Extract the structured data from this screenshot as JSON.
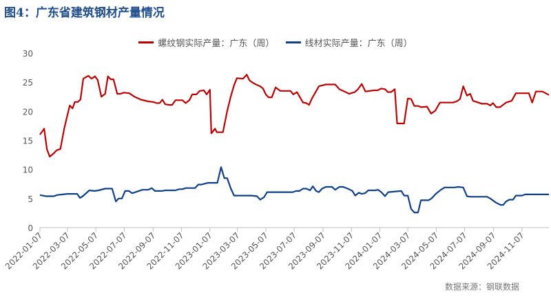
{
  "title": "图4：广东省建筑钢材产量情况",
  "source": "数据来源：钢联数据",
  "chart_data": {
    "type": "line",
    "title": "图4：广东省建筑钢材产量情况",
    "xlabel": "",
    "ylabel": "",
    "ylim": [
      0,
      30
    ],
    "yticks": [
      "0",
      "5",
      "10",
      "15",
      "20",
      "25",
      "30"
    ],
    "xlim": [
      "2022-01-07",
      "2025-01-04"
    ],
    "xticks": [
      "2022-01-07",
      "2022-03-07",
      "2022-05-07",
      "2022-07-07",
      "2022-09-07",
      "2022-11-07",
      "2023-01-07",
      "2023-03-07",
      "2023-05-07",
      "2023-07-07",
      "2023-09-07",
      "2023-11-07",
      "2024-01-07",
      "2024-03-07",
      "2024-05-07",
      "2024-07-07",
      "2024-09-07",
      "2024-11-07"
    ],
    "grid": false,
    "legend": "top",
    "series": [
      {
        "name": "螺纹钢实际产量：广东（周）",
        "color": "#c00000",
        "points": [
          [
            "2022-01-07",
            16
          ],
          [
            "2022-01-16",
            17
          ],
          [
            "2022-01-22",
            13.5
          ],
          [
            "2022-01-28",
            12.2
          ],
          [
            "2022-02-06",
            12.8
          ],
          [
            "2022-02-12",
            13.3
          ],
          [
            "2022-02-20",
            13.5
          ],
          [
            "2022-02-28",
            17
          ],
          [
            "2022-03-06",
            19
          ],
          [
            "2022-03-12",
            21
          ],
          [
            "2022-03-18",
            20.5
          ],
          [
            "2022-03-23",
            21.6
          ],
          [
            "2022-03-29",
            21.6
          ],
          [
            "2022-04-04",
            22
          ],
          [
            "2022-04-10",
            25.6
          ],
          [
            "2022-04-21",
            26.1
          ],
          [
            "2022-04-28",
            25.6
          ],
          [
            "2022-05-05",
            26
          ],
          [
            "2022-05-11",
            25.4
          ],
          [
            "2022-05-19",
            22.5
          ],
          [
            "2022-05-27",
            23
          ],
          [
            "2022-06-02",
            26
          ],
          [
            "2022-06-08",
            25.5
          ],
          [
            "2022-06-14",
            25.5
          ],
          [
            "2022-06-22",
            23
          ],
          [
            "2022-06-29",
            23
          ],
          [
            "2022-07-06",
            23.2
          ],
          [
            "2022-07-18",
            23.1
          ],
          [
            "2022-07-29",
            22.5
          ],
          [
            "2022-08-12",
            22
          ],
          [
            "2022-08-27",
            21.7
          ],
          [
            "2022-09-07",
            21.6
          ],
          [
            "2022-09-15",
            21.4
          ],
          [
            "2022-09-21",
            21.4
          ],
          [
            "2022-09-27",
            22
          ],
          [
            "2022-10-03",
            21.2
          ],
          [
            "2022-10-11",
            21.1
          ],
          [
            "2022-10-18",
            21.1
          ],
          [
            "2022-10-25",
            21.9
          ],
          [
            "2022-11-09",
            21.9
          ],
          [
            "2022-11-16",
            21.4
          ],
          [
            "2022-11-24",
            21.9
          ],
          [
            "2022-11-30",
            22.9
          ],
          [
            "2022-12-09",
            22.9
          ],
          [
            "2022-12-16",
            23.5
          ],
          [
            "2022-12-25",
            23.6
          ],
          [
            "2022-12-31",
            22.9
          ],
          [
            "2023-01-07",
            23.7
          ],
          [
            "2023-01-10",
            16.2
          ],
          [
            "2023-01-18",
            17
          ],
          [
            "2023-01-22",
            16.4
          ],
          [
            "2023-02-04",
            16.4
          ],
          [
            "2023-02-13",
            20
          ],
          [
            "2023-02-21",
            22.6
          ],
          [
            "2023-02-28",
            24.5
          ],
          [
            "2023-03-06",
            25.7
          ],
          [
            "2023-03-19",
            25.6
          ],
          [
            "2023-03-27",
            26.3
          ],
          [
            "2023-04-02",
            25.3
          ],
          [
            "2023-04-09",
            24.9
          ],
          [
            "2023-04-16",
            24.6
          ],
          [
            "2023-04-25",
            24.3
          ],
          [
            "2023-05-01",
            23.9
          ],
          [
            "2023-05-07",
            22.9
          ],
          [
            "2023-05-13",
            22.4
          ],
          [
            "2023-05-20",
            22.4
          ],
          [
            "2023-05-28",
            24.1
          ],
          [
            "2023-06-07",
            23.5
          ],
          [
            "2023-06-29",
            23.5
          ],
          [
            "2023-07-05",
            22.9
          ],
          [
            "2023-07-13",
            23.3
          ],
          [
            "2023-07-18",
            22.6
          ],
          [
            "2023-07-26",
            21.5
          ],
          [
            "2023-08-02",
            21.4
          ],
          [
            "2023-08-08",
            21.1
          ],
          [
            "2023-08-14",
            22.2
          ],
          [
            "2023-08-29",
            24.3
          ],
          [
            "2023-09-13",
            24.6
          ],
          [
            "2023-10-03",
            24.6
          ],
          [
            "2023-10-12",
            23.8
          ],
          [
            "2023-10-23",
            23.4
          ],
          [
            "2023-11-02",
            23
          ],
          [
            "2023-11-14",
            23.3
          ],
          [
            "2023-11-21",
            23.8
          ],
          [
            "2023-11-29",
            24.7
          ],
          [
            "2023-12-07",
            23.4
          ],
          [
            "2023-12-25",
            23.6
          ],
          [
            "2024-01-02",
            23.6
          ],
          [
            "2024-01-10",
            23.9
          ],
          [
            "2024-01-18",
            23.8
          ],
          [
            "2024-01-24",
            23.3
          ],
          [
            "2024-01-31",
            23.3
          ],
          [
            "2024-02-08",
            23.8
          ],
          [
            "2024-02-13",
            17.9
          ],
          [
            "2024-02-28",
            17.9
          ],
          [
            "2024-03-07",
            22.2
          ],
          [
            "2024-03-14",
            22.1
          ],
          [
            "2024-03-21",
            20.9
          ],
          [
            "2024-03-29",
            20.9
          ],
          [
            "2024-04-05",
            20.7
          ],
          [
            "2024-04-17",
            20.8
          ],
          [
            "2024-04-26",
            19.6
          ],
          [
            "2024-05-05",
            20.1
          ],
          [
            "2024-05-15",
            21.5
          ],
          [
            "2024-06-12",
            21.5
          ],
          [
            "2024-06-20",
            21.7
          ],
          [
            "2024-06-27",
            22.1
          ],
          [
            "2024-07-04",
            24.3
          ],
          [
            "2024-07-12",
            22.7
          ],
          [
            "2024-07-19",
            23
          ],
          [
            "2024-07-25",
            21.8
          ],
          [
            "2024-08-13",
            21.3
          ],
          [
            "2024-08-24",
            21.3
          ],
          [
            "2024-08-31",
            21
          ],
          [
            "2024-09-06",
            21.4
          ],
          [
            "2024-09-13",
            20.7
          ],
          [
            "2024-09-21",
            20.7
          ],
          [
            "2024-10-04",
            21.5
          ],
          [
            "2024-10-16",
            21.8
          ],
          [
            "2024-10-25",
            23.1
          ],
          [
            "2024-11-22",
            23.1
          ],
          [
            "2024-11-29",
            21.5
          ],
          [
            "2024-12-07",
            23.4
          ],
          [
            "2024-12-21",
            23.4
          ],
          [
            "2025-01-04",
            22.8
          ]
        ]
      },
      {
        "name": "线材实际产量：广东（周）",
        "color": "#0d3f8a",
        "points": [
          [
            "2022-01-07",
            5.6
          ],
          [
            "2022-01-20",
            5.4
          ],
          [
            "2022-02-06",
            5.4
          ],
          [
            "2022-02-13",
            5.6
          ],
          [
            "2022-03-06",
            5.8
          ],
          [
            "2022-03-28",
            5.8
          ],
          [
            "2022-04-03",
            5.1
          ],
          [
            "2022-04-09",
            5.4
          ],
          [
            "2022-04-23",
            6.4
          ],
          [
            "2022-05-04",
            6.3
          ],
          [
            "2022-05-13",
            6.4
          ],
          [
            "2022-05-27",
            6.7
          ],
          [
            "2022-06-11",
            6.7
          ],
          [
            "2022-06-19",
            4.5
          ],
          [
            "2022-06-25",
            5
          ],
          [
            "2022-07-02",
            5
          ],
          [
            "2022-07-09",
            6.3
          ],
          [
            "2022-07-17",
            6.3
          ],
          [
            "2022-07-24",
            5.9
          ],
          [
            "2022-08-15",
            6.5
          ],
          [
            "2022-08-27",
            6.5
          ],
          [
            "2022-09-04",
            6.8
          ],
          [
            "2022-09-11",
            6.3
          ],
          [
            "2022-09-26",
            6.3
          ],
          [
            "2022-10-03",
            6.4
          ],
          [
            "2022-10-25",
            6.4
          ],
          [
            "2022-11-02",
            6.6
          ],
          [
            "2022-11-09",
            6.6
          ],
          [
            "2022-11-16",
            6.8
          ],
          [
            "2022-12-06",
            6.8
          ],
          [
            "2022-12-13",
            7.4
          ],
          [
            "2022-12-20",
            7.4
          ],
          [
            "2023-01-03",
            7.7
          ],
          [
            "2023-01-23",
            7.7
          ],
          [
            "2023-01-31",
            10.4
          ],
          [
            "2023-02-07",
            8.5
          ],
          [
            "2023-02-13",
            8.5
          ],
          [
            "2023-02-21",
            6.7
          ],
          [
            "2023-02-28",
            5.5
          ],
          [
            "2023-04-06",
            5.5
          ],
          [
            "2023-04-18",
            5.4
          ],
          [
            "2023-04-25",
            4.8
          ],
          [
            "2023-05-03",
            5.2
          ],
          [
            "2023-05-10",
            6.1
          ],
          [
            "2023-05-28",
            6.1
          ],
          [
            "2023-07-04",
            6.1
          ],
          [
            "2023-07-11",
            6.3
          ],
          [
            "2023-07-18",
            6.3
          ],
          [
            "2023-07-26",
            6.7
          ],
          [
            "2023-08-02",
            6.7
          ],
          [
            "2023-08-10",
            6.4
          ],
          [
            "2023-08-16",
            7.1
          ],
          [
            "2023-08-23",
            6.3
          ],
          [
            "2023-08-29",
            6.1
          ],
          [
            "2023-09-05",
            6.7
          ],
          [
            "2023-09-13",
            7
          ],
          [
            "2023-09-26",
            7
          ],
          [
            "2023-10-03",
            6.5
          ],
          [
            "2023-10-12",
            7
          ],
          [
            "2023-10-20",
            7
          ],
          [
            "2023-10-30",
            6.7
          ],
          [
            "2023-11-09",
            6.3
          ],
          [
            "2023-11-15",
            5.5
          ],
          [
            "2023-11-23",
            6
          ],
          [
            "2023-11-29",
            5.8
          ],
          [
            "2023-12-06",
            5.9
          ],
          [
            "2023-12-13",
            6.4
          ],
          [
            "2023-12-28",
            6.4
          ],
          [
            "2024-01-03",
            6.5
          ],
          [
            "2024-01-10",
            6.1
          ],
          [
            "2024-01-18",
            5.4
          ],
          [
            "2024-01-25",
            6.1
          ],
          [
            "2024-02-22",
            6.3
          ],
          [
            "2024-02-28",
            5.5
          ],
          [
            "2024-03-07",
            5.5
          ],
          [
            "2024-03-14",
            3.2
          ],
          [
            "2024-03-21",
            2.6
          ],
          [
            "2024-03-29",
            2.6
          ],
          [
            "2024-04-04",
            4.7
          ],
          [
            "2024-04-20",
            4.7
          ],
          [
            "2024-04-27",
            5
          ],
          [
            "2024-05-06",
            5.8
          ],
          [
            "2024-05-17",
            6.5
          ],
          [
            "2024-05-25",
            6.9
          ],
          [
            "2024-06-15",
            6.9
          ],
          [
            "2024-06-23",
            7
          ],
          [
            "2024-07-04",
            6.9
          ],
          [
            "2024-07-12",
            5.4
          ],
          [
            "2024-07-19",
            5.3
          ],
          [
            "2024-08-24",
            5.3
          ],
          [
            "2024-08-31",
            5
          ],
          [
            "2024-09-12",
            4.3
          ],
          [
            "2024-09-22",
            3.9
          ],
          [
            "2024-09-28",
            3.9
          ],
          [
            "2024-10-04",
            4.5
          ],
          [
            "2024-10-11",
            4.8
          ],
          [
            "2024-10-19",
            4.8
          ],
          [
            "2024-10-25",
            5.5
          ],
          [
            "2024-11-07",
            5.5
          ],
          [
            "2024-11-14",
            5.7
          ],
          [
            "2025-01-04",
            5.7
          ]
        ]
      }
    ]
  }
}
